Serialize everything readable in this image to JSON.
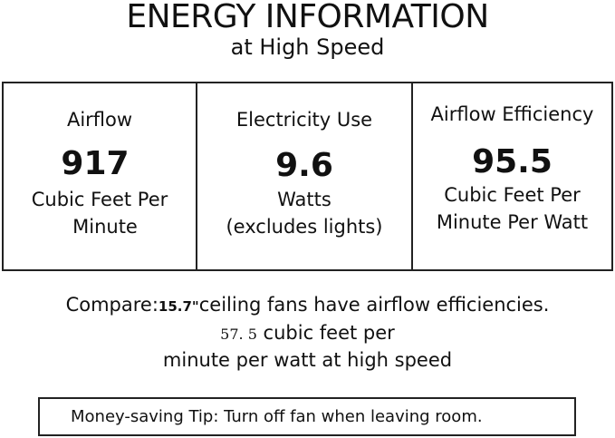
{
  "header": {
    "title": "ENERGY INFORMATION",
    "subtitle": "at High Speed"
  },
  "cells": [
    {
      "label": "Airflow",
      "value": "917",
      "unit_line1": "Cubic Feet Per",
      "unit_line2": "Minute"
    },
    {
      "label": "Electricity Use",
      "value": "9.6",
      "unit_line1": "Watts",
      "unit_line2": "(excludes lights)"
    },
    {
      "label": "Airflow Efficiency",
      "value": "95.5",
      "unit_line1": "Cubic Feet Per",
      "unit_line2": "Minute Per Watt"
    }
  ],
  "compare": {
    "prefix": "Compare:",
    "size": "15.7\"",
    "text1": "ceiling fans have airflow efficiencies.",
    "value": "57. 5",
    "text2": " cubic feet per",
    "line3": "minute per watt at high speed"
  },
  "tip": {
    "label": "Money-saving Tip:",
    "text": " Turn off fan when leaving room."
  }
}
